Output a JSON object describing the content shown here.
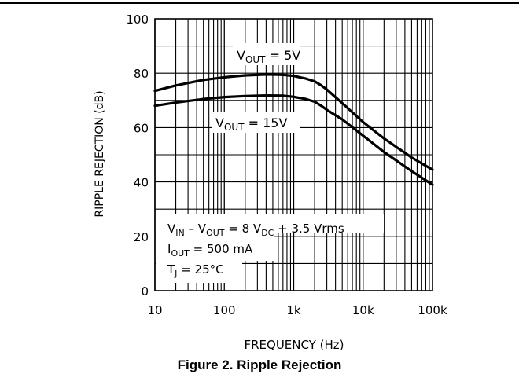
{
  "figure_caption": "Figure 2. Ripple Rejection",
  "chart_data": {
    "type": "line",
    "xlabel": "FREQUENCY (Hz)",
    "ylabel": "RIPPLE REJECTION (dB)",
    "xscale": "log",
    "xlim": [
      10,
      100000
    ],
    "ylim": [
      0,
      100
    ],
    "grid": true,
    "x_tick_values": [
      10,
      100,
      1000,
      10000,
      100000
    ],
    "x_tick_labels": [
      "10",
      "100",
      "1k",
      "10k",
      "100k"
    ],
    "y_tick_values": [
      0,
      20,
      40,
      60,
      80,
      100
    ],
    "y_tick_labels": [
      "0",
      "20",
      "40",
      "60",
      "80",
      "100"
    ],
    "series": [
      {
        "name": "V_OUT = 5V",
        "label_main": "V",
        "label_sub": "OUT",
        "label_rest": " = 5V",
        "x": [
          10,
          20,
          50,
          100,
          200,
          400,
          700,
          1000,
          1500,
          2000,
          2500,
          3000,
          5000,
          10000,
          20000,
          50000,
          100000
        ],
        "y": [
          73.5,
          75.5,
          77.5,
          78.5,
          79.2,
          79.5,
          79.4,
          79,
          78,
          77,
          75.5,
          74,
          69,
          62,
          56,
          49,
          44.5
        ]
      },
      {
        "name": "V_OUT = 15V",
        "label_main": "V",
        "label_sub": "OUT",
        "label_rest": " = 15V",
        "x": [
          10,
          20,
          50,
          100,
          200,
          400,
          700,
          1000,
          1500,
          2000,
          2500,
          3000,
          5000,
          10000,
          20000,
          50000,
          100000
        ],
        "y": [
          68,
          69.2,
          70.5,
          71.2,
          71.6,
          71.8,
          71.7,
          71.3,
          70.5,
          69.5,
          68,
          66.5,
          63,
          57,
          51,
          44,
          39
        ]
      }
    ],
    "conditions": {
      "line1": {
        "a": "V",
        "a_sub": "IN",
        "b": " – V",
        "b_sub": "OUT",
        "c": " = 8 V",
        "c_sub": "DC",
        "d": " + 3.5 Vrms"
      },
      "line2": {
        "a": "I",
        "a_sub": "OUT",
        "b": " = 500 mA"
      },
      "line3": {
        "a": "T",
        "a_sub": "J",
        "b": " = 25°C"
      }
    }
  }
}
